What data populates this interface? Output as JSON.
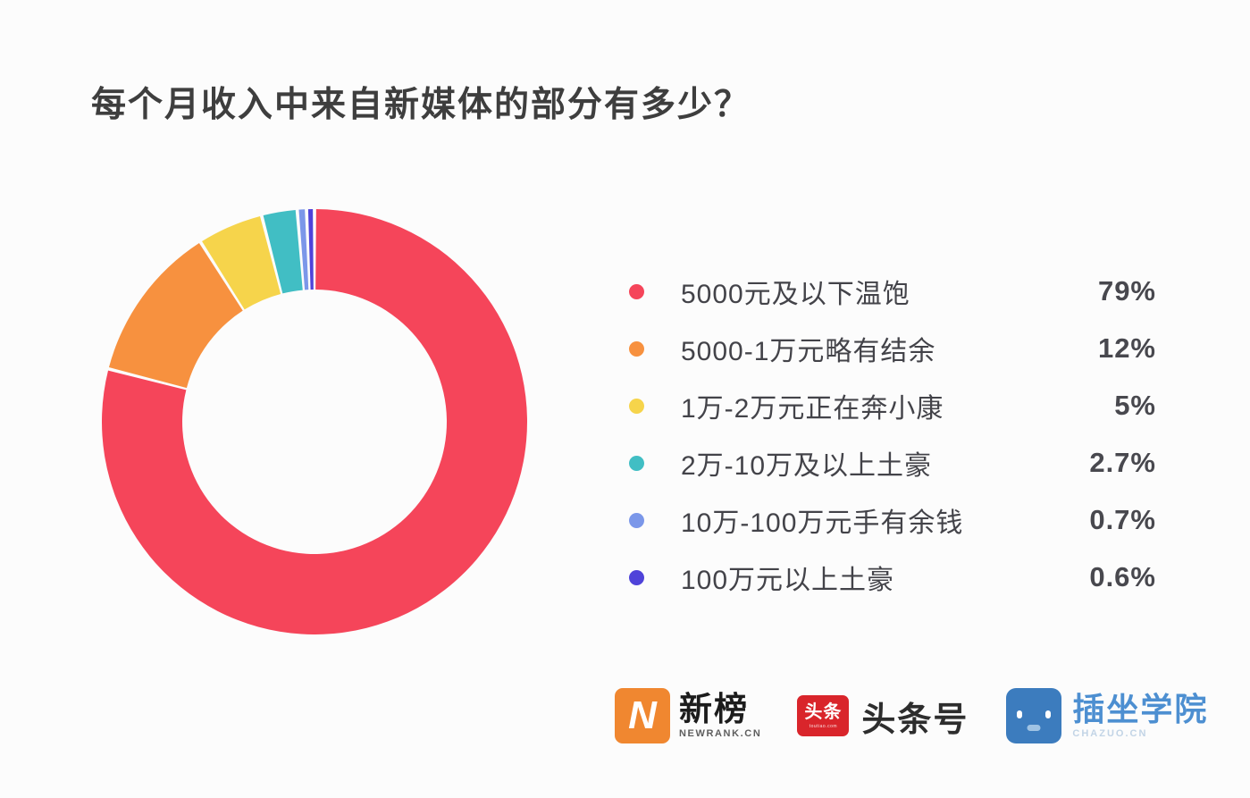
{
  "title": "每个月收入中来自新媒体的部分有多少？",
  "chart_data": {
    "type": "pie",
    "subtype": "donut",
    "title": "每个月收入中来自新媒体的部分有多少？",
    "legend_position": "right",
    "start_angle_deg": 0,
    "direction": "clockwise",
    "inner_radius_ratio": 0.62,
    "slice_gap_color": "#FCFCFC",
    "items": [
      {
        "label": "5000元及以下温饱",
        "value": 79,
        "display": "79%",
        "color": "#F5455A"
      },
      {
        "label": "5000-1万元略有结余",
        "value": 12,
        "display": "12%",
        "color": "#F7913F"
      },
      {
        "label": "1万-2万元正在奔小康",
        "value": 5,
        "display": "5%",
        "color": "#F6D44B"
      },
      {
        "label": "2万-10万及以上土豪",
        "value": 2.7,
        "display": "2.7%",
        "color": "#41BEC4"
      },
      {
        "label": "10万-100万元手有余钱",
        "value": 0.7,
        "display": "0.7%",
        "color": "#7B97E9"
      },
      {
        "label": "100万元以上土豪",
        "value": 0.6,
        "display": "0.6%",
        "color": "#4F43D9"
      }
    ]
  },
  "footer": {
    "logos": {
      "newrank": {
        "name": "新榜",
        "subtext": "NEWRANK.CN",
        "icon_letter": "N",
        "icon_color": "#F08730"
      },
      "toutiao": {
        "name": "头条号",
        "icon_text": "头条",
        "icon_subtext": "toutiao.com",
        "icon_color": "#D9252B"
      },
      "chazuo": {
        "name": "插坐学院",
        "subtext": "CHAZUO.CN",
        "icon_color": "#3C7CBE",
        "text_color": "#4D8FD1"
      }
    }
  }
}
